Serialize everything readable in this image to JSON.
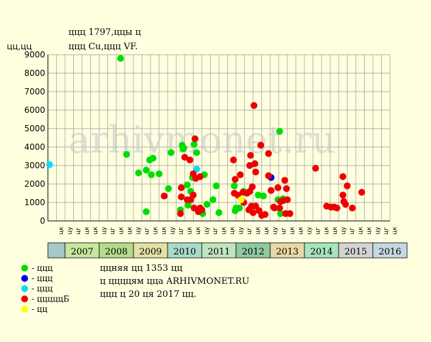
{
  "chart_data": {
    "type": "scatter",
    "title": "ццц 1797,ццы ц",
    "subtitle": "ццц Cu,ццц VF.",
    "ylabel": "цц,цц",
    "ylim": [
      0,
      9000
    ],
    "yticks": [
      "0",
      "1000",
      "2000",
      "3000",
      "4000",
      "5000",
      "6000",
      "7000",
      "8000",
      "9000"
    ],
    "watermark": "arhivmonet.ru",
    "grid": true,
    "quarter_labels": [
      "цк",
      "цу",
      "цг",
      "цк",
      "цк",
      "цу",
      "цг",
      "цк",
      "цк",
      "цу",
      "цг",
      "цк",
      "цк",
      "цу",
      "цг",
      "цк",
      "цк",
      "цу",
      "цг",
      "цк",
      "цк",
      "цу",
      "цг",
      "цк",
      "цк",
      "цу",
      "цг",
      "цк",
      "цк",
      "цу",
      "цг",
      "цк",
      "цк",
      "цу",
      "цг",
      "цк",
      "цк",
      "цу",
      "цг",
      "цк"
    ],
    "years": [
      {
        "label": "2007",
        "color": "#C8E6A0"
      },
      {
        "label": "2008",
        "color": "#B4DC8C"
      },
      {
        "label": "2009",
        "color": "#E4E0A8"
      },
      {
        "label": "2010",
        "color": "#A8DCC8"
      },
      {
        "label": "2011",
        "color": "#C0E4C0"
      },
      {
        "label": "2012",
        "color": "#90C8A0"
      },
      {
        "label": "2013",
        "color": "#E8D8A8"
      },
      {
        "label": "2014",
        "color": "#A8E4C0"
      },
      {
        "label": "2015",
        "color": "#D4D4D4"
      },
      {
        "label": "2016",
        "color": "#C4D8E0"
      }
    ],
    "lead_color": "#A8C8C8",
    "colors": {
      "green": "#00DD00",
      "blue": "#0000EE",
      "cyan": "#00DDFF",
      "red": "#EE0000",
      "yellow": "#FFFF00",
      "grid": "#999999",
      "axis": "#000000"
    },
    "series": [
      {
        "key": "green",
        "points": [
          [
            8.5,
            8800
          ],
          [
            9.2,
            3600
          ],
          [
            10.6,
            2600
          ],
          [
            11.5,
            500
          ],
          [
            11.5,
            2750
          ],
          [
            11.9,
            3300
          ],
          [
            12.1,
            2500
          ],
          [
            12.3,
            3400
          ],
          [
            13.0,
            2550
          ],
          [
            14.1,
            1750
          ],
          [
            14.4,
            3700
          ],
          [
            15.5,
            600
          ],
          [
            15.7,
            4100
          ],
          [
            15.8,
            3900
          ],
          [
            15.9,
            3950
          ],
          [
            16.3,
            1950
          ],
          [
            16.4,
            850
          ],
          [
            16.7,
            1600
          ],
          [
            16.9,
            2350
          ],
          [
            17.1,
            4150
          ],
          [
            17.4,
            3700
          ],
          [
            17.8,
            550
          ],
          [
            18.1,
            400
          ],
          [
            18.3,
            2500
          ],
          [
            18.6,
            900
          ],
          [
            19.3,
            1150
          ],
          [
            19.7,
            1900
          ],
          [
            20.0,
            450
          ],
          [
            21.8,
            1900
          ],
          [
            21.9,
            550
          ],
          [
            22.0,
            700
          ],
          [
            22.4,
            700
          ],
          [
            22.9,
            1600
          ],
          [
            24.6,
            1400
          ],
          [
            25.2,
            1350
          ],
          [
            26.9,
            1150
          ],
          [
            27.1,
            4850
          ],
          [
            27.2,
            400
          ],
          [
            27.5,
            1200
          ]
        ]
      },
      {
        "key": "blue",
        "points": [
          [
            26.1,
            2350
          ]
        ]
      },
      {
        "key": "cyan",
        "points": [
          [
            0.2,
            3050
          ],
          [
            17.4,
            2800
          ]
        ]
      },
      {
        "key": "red",
        "points": [
          [
            13.6,
            1350
          ],
          [
            15.5,
            400
          ],
          [
            15.6,
            1300
          ],
          [
            15.6,
            1800
          ],
          [
            16.0,
            3450
          ],
          [
            16.3,
            1150
          ],
          [
            16.6,
            3300
          ],
          [
            16.7,
            1150
          ],
          [
            17.0,
            2550
          ],
          [
            17.0,
            1400
          ],
          [
            17.1,
            700
          ],
          [
            17.2,
            4450
          ],
          [
            17.3,
            2300
          ],
          [
            17.6,
            500
          ],
          [
            17.8,
            2400
          ],
          [
            17.8,
            700
          ],
          [
            18.0,
            600
          ],
          [
            21.7,
            3300
          ],
          [
            21.8,
            1500
          ],
          [
            21.9,
            2250
          ],
          [
            22.2,
            1400
          ],
          [
            22.5,
            2500
          ],
          [
            22.8,
            1550
          ],
          [
            22.9,
            1000
          ],
          [
            23.3,
            1500
          ],
          [
            23.5,
            600
          ],
          [
            23.6,
            3000
          ],
          [
            23.6,
            1600
          ],
          [
            23.7,
            3550
          ],
          [
            23.8,
            800
          ],
          [
            23.9,
            1850
          ],
          [
            24.0,
            450
          ],
          [
            24.1,
            6250
          ],
          [
            24.2,
            3100
          ],
          [
            24.3,
            2650
          ],
          [
            24.3,
            800
          ],
          [
            24.7,
            550
          ],
          [
            24.9,
            4100
          ],
          [
            25.0,
            300
          ],
          [
            25.4,
            350
          ],
          [
            25.8,
            3650
          ],
          [
            25.8,
            2450
          ],
          [
            26.1,
            1650
          ],
          [
            26.4,
            750
          ],
          [
            26.5,
            700
          ],
          [
            26.9,
            1800
          ],
          [
            27.1,
            700
          ],
          [
            27.2,
            1050
          ],
          [
            27.5,
            1100
          ],
          [
            27.7,
            2200
          ],
          [
            27.8,
            400
          ],
          [
            27.9,
            1750
          ],
          [
            28.0,
            1150
          ],
          [
            28.3,
            400
          ],
          [
            31.3,
            2850
          ],
          [
            32.6,
            800
          ],
          [
            33.1,
            750
          ],
          [
            33.5,
            750
          ],
          [
            33.8,
            700
          ],
          [
            34.5,
            2400
          ],
          [
            34.5,
            1400
          ],
          [
            34.6,
            1050
          ],
          [
            34.8,
            900
          ],
          [
            35.0,
            1900
          ],
          [
            35.6,
            700
          ],
          [
            36.7,
            1550
          ]
        ]
      },
      {
        "key": "yellow",
        "points": [
          [
            22.6,
            1150
          ]
        ]
      }
    ]
  },
  "legend": [
    {
      "key": "green",
      "label": "- ццц"
    },
    {
      "key": "blue",
      "label": "- ццц"
    },
    {
      "key": "cyan",
      "label": "- ццц"
    },
    {
      "key": "red",
      "label": "- цццццБ"
    },
    {
      "key": "yellow",
      "label": "- цц"
    }
  ],
  "notes": [
    "ццняя цц 1353 цц",
    "ц ццццям цца ARHIVMONET.RU",
    "ццц ц 20 ця 2017 цц."
  ]
}
